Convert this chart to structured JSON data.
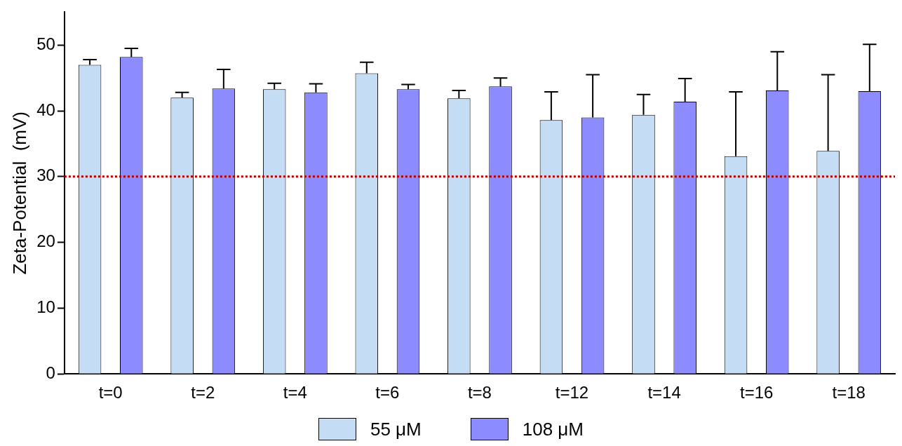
{
  "chart_data": {
    "type": "bar",
    "ylabel": "Zeta-Potential  (mV)",
    "categories": [
      "t=0",
      "t=2",
      "t=4",
      "t=6",
      "t=8",
      "t=12",
      "t=14",
      "t=16",
      "t=18"
    ],
    "series": [
      {
        "name": "55 μM",
        "color": "#c5dcf5",
        "values": [
          47.0,
          42.0,
          43.3,
          45.7,
          41.9,
          38.6,
          39.4,
          33.1,
          33.9
        ],
        "errors": [
          [
            47.0,
            47.8
          ],
          [
            42.0,
            42.8
          ],
          [
            43.3,
            44.2
          ],
          [
            45.7,
            47.4
          ],
          [
            41.9,
            43.1
          ],
          [
            38.6,
            42.9
          ],
          [
            39.4,
            42.5
          ],
          [
            33.1,
            42.9
          ],
          [
            33.9,
            45.5
          ]
        ]
      },
      {
        "name": "108 μM",
        "color": "#8c8cff",
        "values": [
          48.2,
          43.4,
          42.8,
          43.3,
          43.7,
          39.0,
          41.4,
          43.1,
          43.0
        ],
        "errors": [
          [
            48.2,
            49.5
          ],
          [
            43.4,
            46.3
          ],
          [
            42.8,
            44.1
          ],
          [
            43.3,
            44.0
          ],
          [
            43.7,
            45.0
          ],
          [
            39.0,
            45.5
          ],
          [
            41.4,
            44.9
          ],
          [
            43.1,
            49.0
          ],
          [
            43.0,
            50.1
          ]
        ]
      }
    ],
    "ylim": [
      0,
      55
    ],
    "yticks": [
      0,
      10,
      20,
      30,
      40,
      50
    ],
    "grid": false,
    "legend": "bottom",
    "ref_lines": [
      {
        "axis": "y",
        "value": 30,
        "color": "#b00000",
        "line_style": "dotted"
      }
    ]
  }
}
